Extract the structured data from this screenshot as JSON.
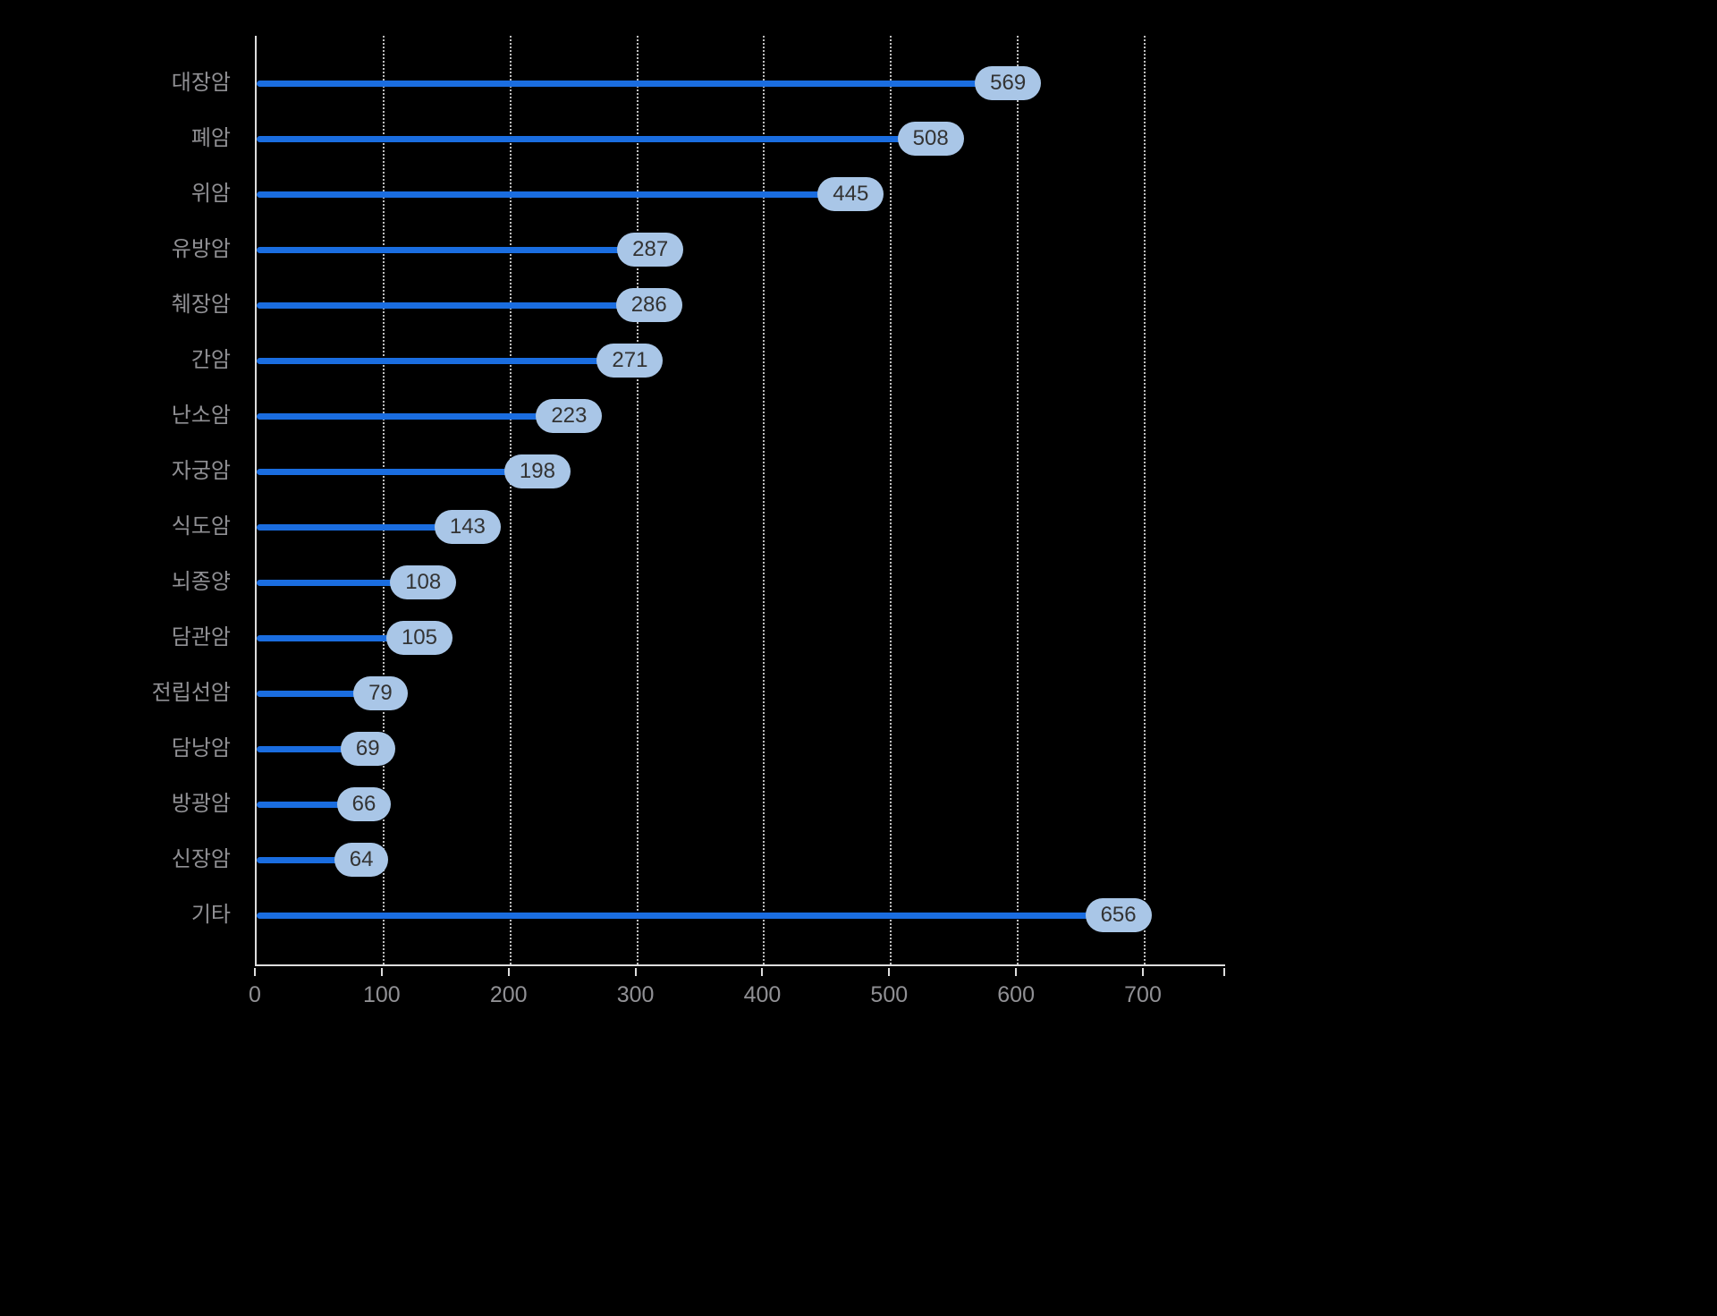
{
  "chart_data": {
    "type": "bar",
    "orientation": "horizontal",
    "title": "",
    "xlabel": "",
    "ylabel": "",
    "categories": [
      "대장암",
      "폐암",
      "위암",
      "유방암",
      "췌장암",
      "간암",
      "난소암",
      "자궁암",
      "식도암",
      "뇌종양",
      "담관암",
      "전립선암",
      "담낭암",
      "방광암",
      "신장암",
      "기타"
    ],
    "values": [
      569,
      508,
      445,
      287,
      286,
      271,
      223,
      198,
      143,
      108,
      105,
      79,
      69,
      66,
      64,
      656
    ],
    "x_ticks": [
      0,
      100,
      200,
      300,
      400,
      500,
      600,
      700
    ],
    "xlim": [
      0,
      765
    ],
    "grid": "vertical-dotted",
    "legend": "none",
    "style": "lollipop bars with rounded value pills at bar ends",
    "colors": {
      "background": "#000000",
      "bar": "#1a6de0",
      "pill_bg": "#a9c6e7",
      "pill_text": "#333333",
      "axis": "#dddddd",
      "grid": "#bfbfbf",
      "label": "#909094"
    }
  }
}
